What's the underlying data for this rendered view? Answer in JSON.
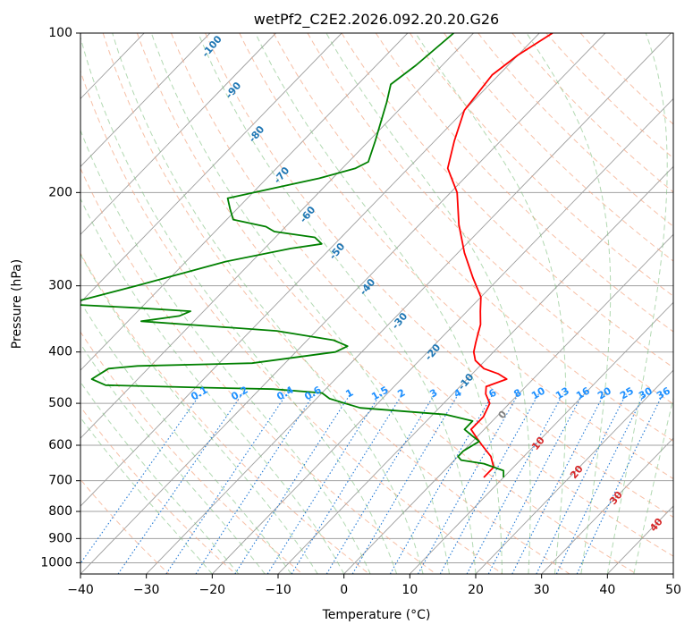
{
  "chart_data": {
    "type": "line",
    "title": "wetPf2_C2E2.2026.092.20.20.G26",
    "xlabel": "Temperature (°C)",
    "ylabel": "Pressure (hPa)",
    "xlim": [
      -40,
      50
    ],
    "ylim": [
      1050,
      100
    ],
    "y_scale": "log",
    "skew": "skew-T log-P",
    "x_ticks": [
      -40,
      -30,
      -20,
      -10,
      0,
      10,
      20,
      30,
      40,
      50
    ],
    "y_ticks": [
      100,
      200,
      300,
      400,
      500,
      600,
      700,
      800,
      900,
      1000
    ],
    "grid": true,
    "series": [
      {
        "color": "#ff0000",
        "points": [
          [
            -48,
            100
          ],
          [
            -50,
            110
          ],
          [
            -51,
            120
          ],
          [
            -50,
            140
          ],
          [
            -47,
            160
          ],
          [
            -44,
            180
          ],
          [
            -39,
            200
          ],
          [
            -34,
            230
          ],
          [
            -29,
            260
          ],
          [
            -24,
            290
          ],
          [
            -20,
            315
          ],
          [
            -18,
            335
          ],
          [
            -16,
            355
          ],
          [
            -15,
            370
          ],
          [
            -14,
            385
          ],
          [
            -13,
            400
          ],
          [
            -11.5,
            415
          ],
          [
            -9,
            430
          ],
          [
            -6,
            440
          ],
          [
            -4,
            450
          ],
          [
            -6,
            465
          ],
          [
            -5,
            480
          ],
          [
            -3,
            500
          ],
          [
            -2,
            530
          ],
          [
            -2,
            560
          ],
          [
            0,
            580
          ],
          [
            2,
            600
          ],
          [
            5,
            630
          ],
          [
            7,
            660
          ],
          [
            7,
            690
          ]
        ]
      },
      {
        "color": "#008000",
        "points": [
          [
            -63,
            100
          ],
          [
            -64,
            115
          ],
          [
            -65,
            125
          ],
          [
            -63,
            135
          ],
          [
            -59,
            160
          ],
          [
            -57,
            175
          ],
          [
            -58,
            180
          ],
          [
            -62,
            188
          ],
          [
            -68,
            197
          ],
          [
            -73,
            205
          ],
          [
            -71,
            215
          ],
          [
            -69,
            225
          ],
          [
            -63,
            232
          ],
          [
            -61,
            237
          ],
          [
            -54,
            243
          ],
          [
            -52,
            250
          ],
          [
            -56,
            255
          ],
          [
            -64,
            270
          ],
          [
            -74,
            300
          ],
          [
            -82,
            325
          ],
          [
            -71,
            330
          ],
          [
            -62,
            335
          ],
          [
            -63,
            342
          ],
          [
            -68,
            350
          ],
          [
            -46,
            365
          ],
          [
            -36,
            380
          ],
          [
            -33,
            390
          ],
          [
            -34,
            400
          ],
          [
            -45,
            420
          ],
          [
            -62,
            425
          ],
          [
            -66,
            430
          ],
          [
            -67,
            450
          ],
          [
            -64,
            462
          ],
          [
            -49,
            467
          ],
          [
            -38,
            470
          ],
          [
            -30,
            478
          ],
          [
            -28,
            490
          ],
          [
            -22,
            510
          ],
          [
            -8,
            525
          ],
          [
            -3,
            540
          ],
          [
            -3,
            560
          ],
          [
            -1,
            575
          ],
          [
            1,
            590
          ],
          [
            0,
            615
          ],
          [
            0,
            630
          ],
          [
            1,
            640
          ],
          [
            5,
            650
          ],
          [
            9,
            670
          ],
          [
            10,
            690
          ]
        ]
      }
    ],
    "dry_adiabat_labels": [
      "-100",
      "-90",
      "-80",
      "-70",
      "-60",
      "-50",
      "-40",
      "-30",
      "-20",
      "-10",
      "0",
      "10",
      "20",
      "30",
      "40"
    ],
    "mixing_ratio_labels": [
      "0.1",
      "0.2",
      "0.4",
      "0.6",
      "1",
      "1.5",
      "2",
      "3",
      "4",
      "6",
      "8",
      "10",
      "13",
      "16",
      "20",
      "25",
      "30",
      "36"
    ],
    "colors": {
      "temperature": "#ff0000",
      "dewpoint": "#008000",
      "dry_adiabat": "#f4a582",
      "moist_adiabat": "#7fbf7f",
      "mixing_ratio": "#1f77d4",
      "isotherm": "#9e9e9e",
      "isobar": "#a0a0a0",
      "label_blue": "#1f77b4",
      "label_mixing": "#1e90ff",
      "label_red": "#d62728",
      "label_gray": "#808080"
    }
  }
}
